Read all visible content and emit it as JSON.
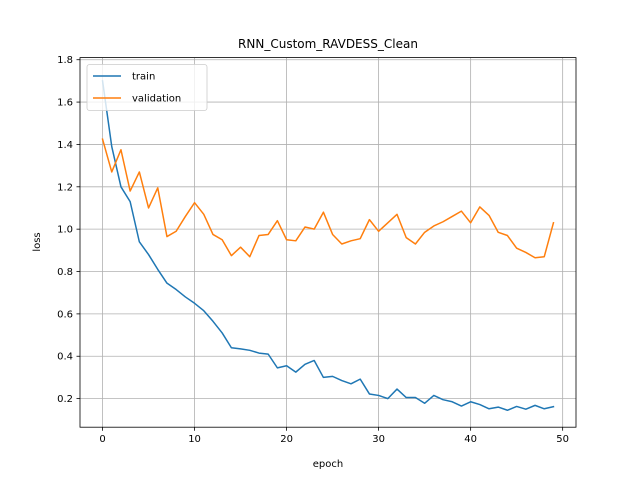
{
  "chart_data": {
    "type": "line",
    "title": "RNN_Custom_RAVDESS_Clean",
    "xlabel": "epoch",
    "ylabel": "loss",
    "xlim": [
      -2.45,
      51.45
    ],
    "ylim": [
      0.065,
      1.81
    ],
    "xticks": [
      0,
      10,
      20,
      30,
      40,
      50
    ],
    "yticks": [
      0.2,
      0.4,
      0.6,
      0.8,
      1.0,
      1.2,
      1.4,
      1.6,
      1.8
    ],
    "ytick_labels": [
      "0.2",
      "0.4",
      "0.6",
      "0.8",
      "1.0",
      "1.2",
      "1.4",
      "1.6",
      "1.8"
    ],
    "grid": true,
    "legend_position": "top-left",
    "x": [
      0,
      1,
      2,
      3,
      4,
      5,
      6,
      7,
      8,
      9,
      10,
      11,
      12,
      13,
      14,
      15,
      16,
      17,
      18,
      19,
      20,
      21,
      22,
      23,
      24,
      25,
      26,
      27,
      28,
      29,
      30,
      31,
      32,
      33,
      34,
      35,
      36,
      37,
      38,
      39,
      40,
      41,
      42,
      43,
      44,
      45,
      46,
      47,
      48,
      49
    ],
    "series": [
      {
        "name": "train",
        "color": "#1f77b4",
        "values": [
          1.7,
          1.39,
          1.2,
          1.13,
          0.94,
          0.88,
          0.81,
          0.745,
          0.715,
          0.68,
          0.65,
          0.615,
          0.565,
          0.51,
          0.44,
          0.435,
          0.428,
          0.415,
          0.41,
          0.345,
          0.355,
          0.325,
          0.362,
          0.38,
          0.3,
          0.305,
          0.285,
          0.27,
          0.292,
          0.222,
          0.215,
          0.2,
          0.245,
          0.205,
          0.205,
          0.178,
          0.215,
          0.195,
          0.185,
          0.165,
          0.185,
          0.172,
          0.152,
          0.16,
          0.145,
          0.163,
          0.15,
          0.168,
          0.152,
          0.162
        ]
      },
      {
        "name": "validation",
        "color": "#ff7f0e",
        "values": [
          1.425,
          1.27,
          1.375,
          1.18,
          1.27,
          1.1,
          1.195,
          0.965,
          0.99,
          1.06,
          1.125,
          1.07,
          0.975,
          0.95,
          0.875,
          0.915,
          0.87,
          0.97,
          0.975,
          1.04,
          0.95,
          0.945,
          1.01,
          1.0,
          1.08,
          0.975,
          0.93,
          0.945,
          0.955,
          1.045,
          0.99,
          1.03,
          1.07,
          0.96,
          0.93,
          0.985,
          1.015,
          1.035,
          1.06,
          1.085,
          1.03,
          1.105,
          1.065,
          0.985,
          0.97,
          0.91,
          0.89,
          0.865,
          0.87,
          1.03
        ]
      }
    ]
  }
}
